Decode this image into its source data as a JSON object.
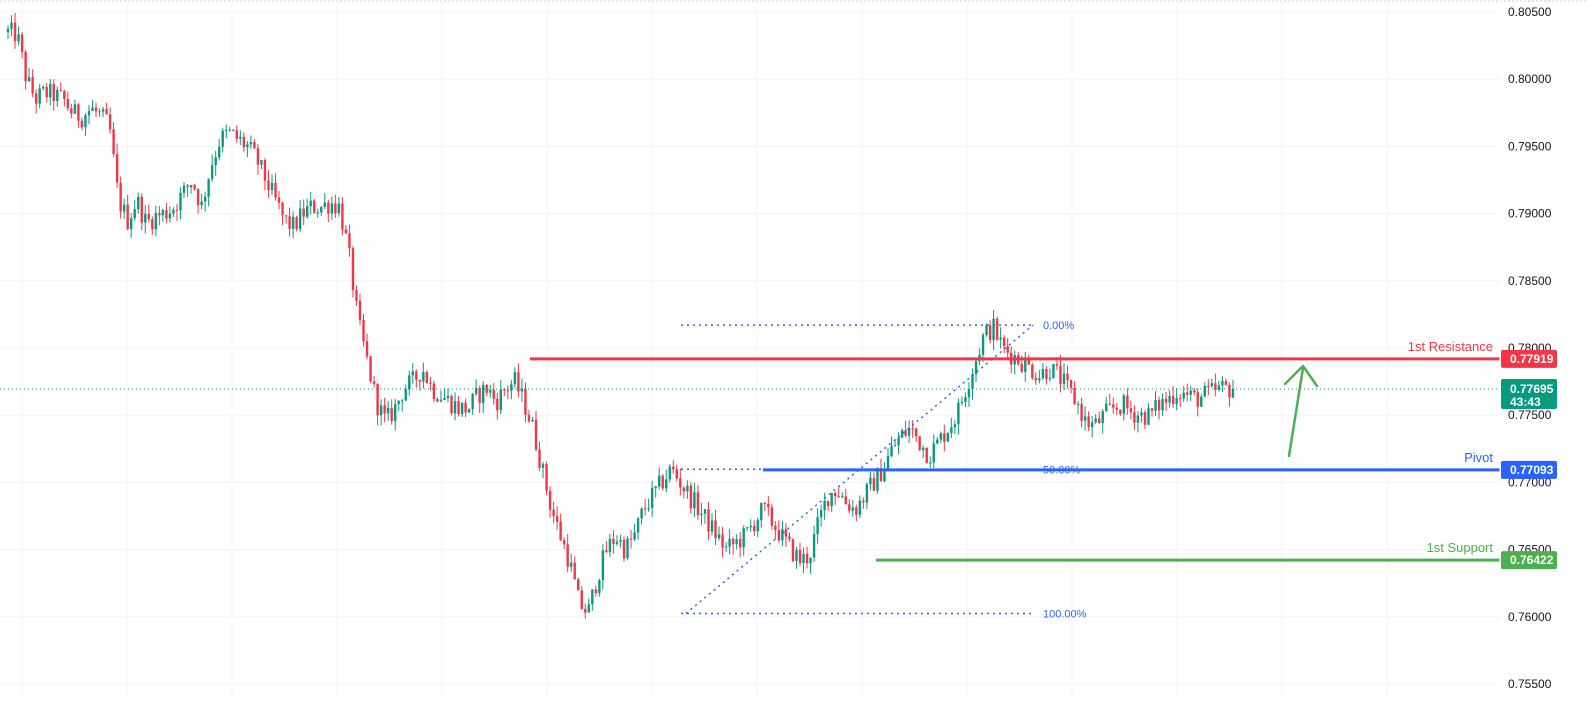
{
  "colors": {
    "bull": "#089981",
    "bear": "#f23645",
    "grid": "#f0f3fa",
    "resistance": "#f23645",
    "pivot": "#2962ff",
    "support": "#4caf50",
    "fib": "#2962ff",
    "current": "#089981",
    "arrow": "#4caf50",
    "axis_text": "#131722"
  },
  "chart_data": {
    "type": "candlestick",
    "title": "",
    "xlabel": "",
    "ylabel": "",
    "ylim": [
      0.755,
      0.8055
    ],
    "grid": true,
    "y_ticks": [
      "0.80500",
      "0.80000",
      "0.79500",
      "0.79000",
      "0.78500",
      "0.78000",
      "0.77500",
      "0.77000",
      "0.76500",
      "0.76000",
      "0.75500"
    ],
    "y_tick_values": [
      0.805,
      0.8,
      0.795,
      0.79,
      0.785,
      0.78,
      0.775,
      0.77,
      0.765,
      0.76,
      0.755
    ],
    "close_path": [
      0.8035,
      0.8033,
      0.8,
      0.7985,
      0.799,
      0.7988,
      0.7985,
      0.7975,
      0.7972,
      0.7978,
      0.7973,
      0.7965,
      0.791,
      0.7895,
      0.791,
      0.7893,
      0.7898,
      0.79,
      0.7905,
      0.7915,
      0.7925,
      0.7905,
      0.7935,
      0.7955,
      0.796,
      0.7955,
      0.795,
      0.794,
      0.7925,
      0.791,
      0.7895,
      0.789,
      0.79,
      0.7905,
      0.7905,
      0.7908,
      0.7905,
      0.787,
      0.782,
      0.779,
      0.776,
      0.7745,
      0.7755,
      0.777,
      0.7775,
      0.7785,
      0.777,
      0.7765,
      0.776,
      0.7755,
      0.7755,
      0.7765,
      0.777,
      0.776,
      0.777,
      0.7775,
      0.776,
      0.774,
      0.771,
      0.768,
      0.766,
      0.764,
      0.761,
      0.7603,
      0.763,
      0.765,
      0.766,
      0.765,
      0.766,
      0.768,
      0.769,
      0.77,
      0.771,
      0.77,
      0.769,
      0.768,
      0.767,
      0.766,
      0.765,
      0.7655,
      0.766,
      0.767,
      0.768,
      0.767,
      0.766,
      0.765,
      0.7642,
      0.7645,
      0.767,
      0.769,
      0.7695,
      0.7685,
      0.768,
      0.769,
      0.77,
      0.771,
      0.7725,
      0.7735,
      0.774,
      0.773,
      0.772,
      0.773,
      0.774,
      0.775,
      0.777,
      0.779,
      0.781,
      0.7815,
      0.78,
      0.7795,
      0.779,
      0.7785,
      0.778,
      0.7785,
      0.778,
      0.777,
      0.776,
      0.7745,
      0.7742,
      0.775,
      0.7755,
      0.7758,
      0.7752,
      0.775,
      0.775,
      0.7758,
      0.7762,
      0.7768,
      0.7765,
      0.7762,
      0.7765,
      0.7768,
      0.777,
      0.77695
    ],
    "levels": [
      {
        "name": "1st Resistance",
        "value": "0.77919",
        "price": 0.77919
      },
      {
        "name": "Pivot",
        "value": "0.77093",
        "price": 0.77093
      },
      {
        "name": "1st Support",
        "value": "0.76422",
        "price": 0.76422
      }
    ],
    "fibonacci": {
      "high": 0.7817,
      "low": 0.76025,
      "labels": [
        {
          "text": "0.00%",
          "price": 0.7817
        },
        {
          "text": "50.00%",
          "price": 0.77093
        },
        {
          "text": "100.00%",
          "price": 0.76025
        }
      ]
    },
    "current_price": {
      "value": "0.77695",
      "price": 0.77695,
      "countdown": "43:43"
    },
    "annotations": [
      {
        "type": "arrow",
        "direction": "up",
        "color": "green"
      }
    ]
  }
}
